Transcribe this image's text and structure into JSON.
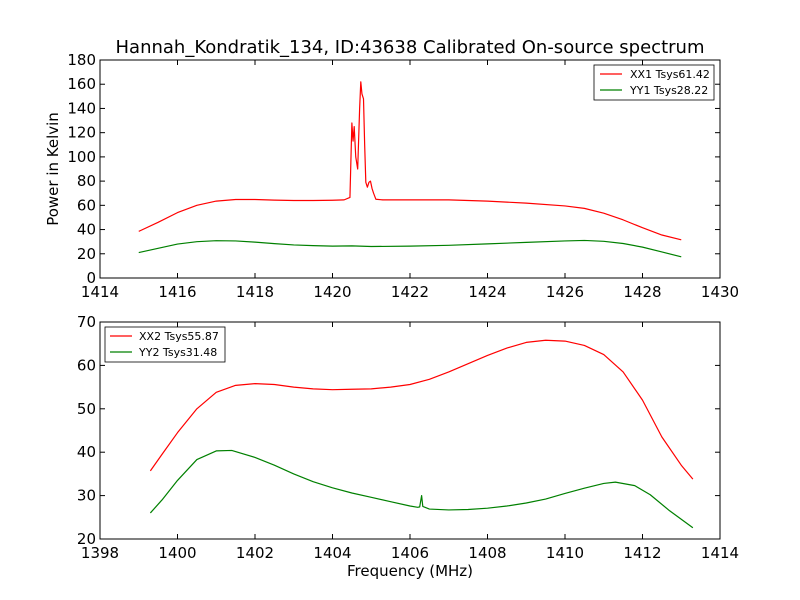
{
  "chart_data": [
    {
      "type": "line",
      "title": "Hannah_Kondratik_134, ID:43638 Calibrated On-source spectrum",
      "xlabel": "",
      "ylabel": "Power in Kelvin",
      "xlim": [
        1414,
        1430
      ],
      "ylim": [
        0,
        180
      ],
      "xticks": [
        "1414",
        "1416",
        "1418",
        "1420",
        "1422",
        "1424",
        "1426",
        "1428",
        "1430"
      ],
      "yticks": [
        "0",
        "20",
        "40",
        "60",
        "80",
        "100",
        "120",
        "140",
        "160",
        "180"
      ],
      "grid": false,
      "legend_position": "upper-right",
      "series": [
        {
          "name": "XX1 Tsys61.42",
          "color": "#ff0000",
          "points": [
            [
              1415.0,
              38.5
            ],
            [
              1415.5,
              46.0
            ],
            [
              1416.0,
              54.0
            ],
            [
              1416.5,
              60.0
            ],
            [
              1417.0,
              63.5
            ],
            [
              1417.5,
              64.8
            ],
            [
              1418.0,
              64.8
            ],
            [
              1418.5,
              64.3
            ],
            [
              1419.0,
              64.0
            ],
            [
              1419.5,
              64.0
            ],
            [
              1420.0,
              64.2
            ],
            [
              1420.3,
              64.5
            ],
            [
              1420.45,
              66.5
            ],
            [
              1420.5,
              128.0
            ],
            [
              1420.53,
              113.0
            ],
            [
              1420.56,
              125.0
            ],
            [
              1420.6,
              100.0
            ],
            [
              1420.65,
              90.0
            ],
            [
              1420.7,
              140.0
            ],
            [
              1420.73,
              162.0
            ],
            [
              1420.76,
              152.0
            ],
            [
              1420.8,
              148.0
            ],
            [
              1420.83,
              110.0
            ],
            [
              1420.86,
              79.0
            ],
            [
              1420.9,
              75.0
            ],
            [
              1420.94,
              79.0
            ],
            [
              1420.98,
              80.0
            ],
            [
              1421.02,
              74.0
            ],
            [
              1421.06,
              70.0
            ],
            [
              1421.12,
              65.0
            ],
            [
              1421.3,
              64.5
            ],
            [
              1422.0,
              64.5
            ],
            [
              1423.0,
              64.5
            ],
            [
              1424.0,
              63.5
            ],
            [
              1425.0,
              61.8
            ],
            [
              1426.0,
              59.5
            ],
            [
              1426.5,
              57.5
            ],
            [
              1427.0,
              53.5
            ],
            [
              1427.5,
              48.0
            ],
            [
              1428.0,
              41.5
            ],
            [
              1428.5,
              35.5
            ],
            [
              1429.0,
              31.5
            ]
          ]
        },
        {
          "name": "YY1 Tsys28.22",
          "color": "#008000",
          "points": [
            [
              1415.0,
              21.0
            ],
            [
              1415.5,
              24.5
            ],
            [
              1416.0,
              28.0
            ],
            [
              1416.5,
              30.0
            ],
            [
              1417.0,
              30.8
            ],
            [
              1417.5,
              30.6
            ],
            [
              1418.0,
              29.6
            ],
            [
              1418.5,
              28.4
            ],
            [
              1419.0,
              27.3
            ],
            [
              1419.5,
              26.7
            ],
            [
              1420.0,
              26.3
            ],
            [
              1420.5,
              26.5
            ],
            [
              1421.0,
              26.0
            ],
            [
              1422.0,
              26.3
            ],
            [
              1423.0,
              27.0
            ],
            [
              1424.0,
              28.2
            ],
            [
              1425.0,
              29.4
            ],
            [
              1426.0,
              30.6
            ],
            [
              1426.5,
              31.0
            ],
            [
              1427.0,
              30.3
            ],
            [
              1427.5,
              28.5
            ],
            [
              1428.0,
              25.5
            ],
            [
              1428.5,
              21.5
            ],
            [
              1429.0,
              17.5
            ]
          ]
        }
      ]
    },
    {
      "type": "line",
      "title": "",
      "xlabel": "Frequency (MHz)",
      "ylabel": "",
      "xlim": [
        1398,
        1414
      ],
      "ylim": [
        20,
        70
      ],
      "xticks": [
        "1398",
        "1400",
        "1402",
        "1404",
        "1406",
        "1408",
        "1410",
        "1412",
        "1414"
      ],
      "yticks": [
        "20",
        "30",
        "40",
        "50",
        "60",
        "70"
      ],
      "grid": false,
      "legend_position": "upper-left",
      "series": [
        {
          "name": "XX2 Tsys55.87",
          "color": "#ff0000",
          "points": [
            [
              1399.3,
              35.7
            ],
            [
              1399.6,
              39.5
            ],
            [
              1400.0,
              44.5
            ],
            [
              1400.5,
              50.0
            ],
            [
              1401.0,
              53.8
            ],
            [
              1401.5,
              55.4
            ],
            [
              1402.0,
              55.8
            ],
            [
              1402.5,
              55.6
            ],
            [
              1403.0,
              55.0
            ],
            [
              1403.5,
              54.6
            ],
            [
              1404.0,
              54.4
            ],
            [
              1404.5,
              54.5
            ],
            [
              1405.0,
              54.6
            ],
            [
              1405.5,
              55.0
            ],
            [
              1406.0,
              55.6
            ],
            [
              1406.5,
              56.8
            ],
            [
              1407.0,
              58.5
            ],
            [
              1407.5,
              60.4
            ],
            [
              1408.0,
              62.3
            ],
            [
              1408.5,
              64.0
            ],
            [
              1409.0,
              65.3
            ],
            [
              1409.5,
              65.8
            ],
            [
              1410.0,
              65.6
            ],
            [
              1410.5,
              64.6
            ],
            [
              1411.0,
              62.5
            ],
            [
              1411.5,
              58.5
            ],
            [
              1412.0,
              52.0
            ],
            [
              1412.5,
              43.5
            ],
            [
              1413.0,
              37.0
            ],
            [
              1413.3,
              33.8
            ]
          ]
        },
        {
          "name": "YY2 Tsys31.48",
          "color": "#008000",
          "points": [
            [
              1399.3,
              26.0
            ],
            [
              1399.6,
              29.0
            ],
            [
              1400.0,
              33.5
            ],
            [
              1400.5,
              38.3
            ],
            [
              1401.0,
              40.3
            ],
            [
              1401.4,
              40.4
            ],
            [
              1402.0,
              38.8
            ],
            [
              1402.5,
              37.0
            ],
            [
              1403.0,
              35.0
            ],
            [
              1403.5,
              33.2
            ],
            [
              1404.0,
              31.8
            ],
            [
              1404.5,
              30.6
            ],
            [
              1405.0,
              29.6
            ],
            [
              1405.5,
              28.6
            ],
            [
              1406.0,
              27.6
            ],
            [
              1406.2,
              27.3
            ],
            [
              1406.25,
              27.4
            ],
            [
              1406.3,
              30.0
            ],
            [
              1406.33,
              27.5
            ],
            [
              1406.5,
              26.9
            ],
            [
              1407.0,
              26.7
            ],
            [
              1407.5,
              26.8
            ],
            [
              1408.0,
              27.1
            ],
            [
              1408.5,
              27.6
            ],
            [
              1409.0,
              28.3
            ],
            [
              1409.5,
              29.2
            ],
            [
              1410.0,
              30.5
            ],
            [
              1410.5,
              31.7
            ],
            [
              1411.0,
              32.8
            ],
            [
              1411.3,
              33.1
            ],
            [
              1411.8,
              32.3
            ],
            [
              1412.2,
              30.2
            ],
            [
              1412.7,
              26.5
            ],
            [
              1413.3,
              22.6
            ]
          ]
        }
      ]
    }
  ]
}
